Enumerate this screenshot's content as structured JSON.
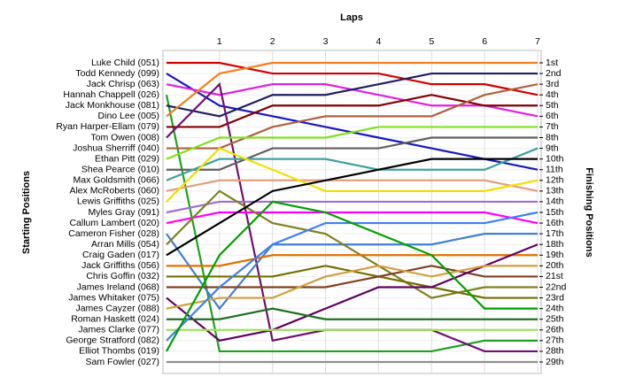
{
  "chart_data": {
    "type": "bump",
    "title": "Laps",
    "ylabel": "Starting Positions",
    "y2label": "Finishing Positions",
    "x": [
      0,
      1,
      2,
      3,
      4,
      5,
      6,
      7
    ],
    "xlim": [
      0,
      7
    ],
    "xticks": [
      1,
      2,
      3,
      4,
      5,
      6,
      7
    ],
    "ylim": [
      1,
      29
    ],
    "grid": true,
    "finish_labels": [
      "1st",
      "2nd",
      "3rd",
      "4th",
      "5th",
      "6th",
      "7th",
      "8th",
      "9th",
      "10th",
      "11th",
      "12th",
      "13th",
      "14th",
      "15th",
      "16th",
      "17th",
      "18th",
      "19th",
      "20th",
      "21st",
      "22nd",
      "23rd",
      "24th",
      "25th",
      "26th",
      "27th",
      "28th",
      "29th"
    ],
    "series": [
      {
        "name": "Luke Child (051)",
        "color": "#d00000",
        "values": [
          1,
          1,
          2,
          2,
          2,
          3,
          3,
          4
        ]
      },
      {
        "name": "Todd Kennedy (099)",
        "color": "#1818c0",
        "values": [
          2,
          5,
          6,
          7,
          8,
          9,
          10,
          11
        ]
      },
      {
        "name": "Jack Chrisp (063)",
        "color": "#e020e0",
        "values": [
          3,
          4,
          3,
          3,
          4,
          5,
          5,
          6
        ]
      },
      {
        "name": "Hannah Chappell (026)",
        "color": "#20a020",
        "values": [
          4,
          28,
          28,
          28,
          28,
          28,
          27,
          27
        ]
      },
      {
        "name": "Jack Monkhouse (081)",
        "color": "#202060",
        "values": [
          5,
          6,
          4,
          4,
          3,
          2,
          2,
          2
        ]
      },
      {
        "name": "Dino Lee (005)",
        "color": "#f08020",
        "values": [
          6,
          2,
          1,
          1,
          1,
          1,
          1,
          1
        ]
      },
      {
        "name": "Ryan Harper-Ellam (079)",
        "color": "#800000",
        "values": [
          7,
          7,
          5,
          5,
          5,
          4,
          5,
          5
        ]
      },
      {
        "name": "Tom Owen (008)",
        "color": "#701070",
        "values": [
          8,
          3,
          27,
          26,
          26,
          26,
          28,
          28
        ]
      },
      {
        "name": "Joshua Sherriff (040)",
        "color": "#b06040",
        "values": [
          9,
          9,
          7,
          6,
          6,
          6,
          4,
          3
        ]
      },
      {
        "name": "Ethan Pitt (029)",
        "color": "#80e020",
        "values": [
          10,
          8,
          8,
          8,
          7,
          7,
          7,
          7
        ]
      },
      {
        "name": "Shea Pearce (010)",
        "color": "#606060",
        "values": [
          11,
          11,
          9,
          9,
          9,
          8,
          8,
          8
        ]
      },
      {
        "name": "Max Goldsmith (066)",
        "color": "#40a0a0",
        "values": [
          12,
          10,
          10,
          10,
          11,
          11,
          11,
          9
        ]
      },
      {
        "name": "Alex McRoberts (060)",
        "color": "#e0a080",
        "values": [
          13,
          12,
          12,
          12,
          12,
          12,
          12,
          13
        ]
      },
      {
        "name": "Lewis Griffiths (025)",
        "color": "#f0e000",
        "values": [
          14,
          9,
          11,
          13,
          13,
          13,
          13,
          12
        ]
      },
      {
        "name": "Myles Gray (091)",
        "color": "#a070d0",
        "values": [
          15,
          14,
          14,
          14,
          14,
          14,
          14,
          14
        ]
      },
      {
        "name": "Callum Lambert (020)",
        "color": "#ff00ff",
        "values": [
          16,
          15,
          15,
          15,
          15,
          15,
          15,
          16
        ]
      },
      {
        "name": "Cameron Fisher (028)",
        "color": "#4080d0",
        "values": [
          17,
          24,
          18,
          18,
          18,
          18,
          17,
          17
        ]
      },
      {
        "name": "Arran Mills (054)",
        "color": "#808020",
        "values": [
          18,
          13,
          16,
          17,
          20,
          23,
          22,
          22
        ]
      },
      {
        "name": "Craig Gaden (017)",
        "color": "#000000",
        "values": [
          19,
          16,
          13,
          12,
          11,
          10,
          10,
          10
        ]
      },
      {
        "name": "Jack Griffiths (056)",
        "color": "#e07000",
        "values": [
          20,
          20,
          19,
          19,
          19,
          19,
          19,
          19
        ]
      },
      {
        "name": "Chris Goffin (032)",
        "color": "#707000",
        "values": [
          21,
          21,
          21,
          20,
          21,
          22,
          23,
          23
        ]
      },
      {
        "name": "James Ireland (068)",
        "color": "#804020",
        "values": [
          22,
          22,
          22,
          22,
          21,
          20,
          21,
          21
        ]
      },
      {
        "name": "James Whitaker (075)",
        "color": "#600060",
        "values": [
          23,
          27,
          26,
          24,
          22,
          22,
          20,
          18
        ]
      },
      {
        "name": "James Cayzer (088)",
        "color": "#d0a040",
        "values": [
          24,
          23,
          23,
          21,
          20,
          21,
          20,
          20
        ]
      },
      {
        "name": "Roman Haskett (024)",
        "color": "#207020",
        "values": [
          25,
          25,
          24,
          25,
          25,
          25,
          25,
          25
        ]
      },
      {
        "name": "James Clarke (077)",
        "color": "#a0e060",
        "values": [
          26,
          26,
          26,
          26,
          26,
          26,
          26,
          26
        ]
      },
      {
        "name": "George Stratford (082)",
        "color": "#4080f0",
        "values": [
          27,
          22,
          18,
          16,
          16,
          16,
          16,
          15
        ]
      },
      {
        "name": "Elliot Thombs (019)",
        "color": "#00a000",
        "values": [
          28,
          19,
          14,
          15,
          17,
          19,
          24,
          24
        ]
      },
      {
        "name": "Sam Fowler (027)",
        "color": "#909090",
        "values": [
          29,
          29,
          29,
          29,
          29,
          29,
          29,
          29
        ]
      }
    ]
  }
}
